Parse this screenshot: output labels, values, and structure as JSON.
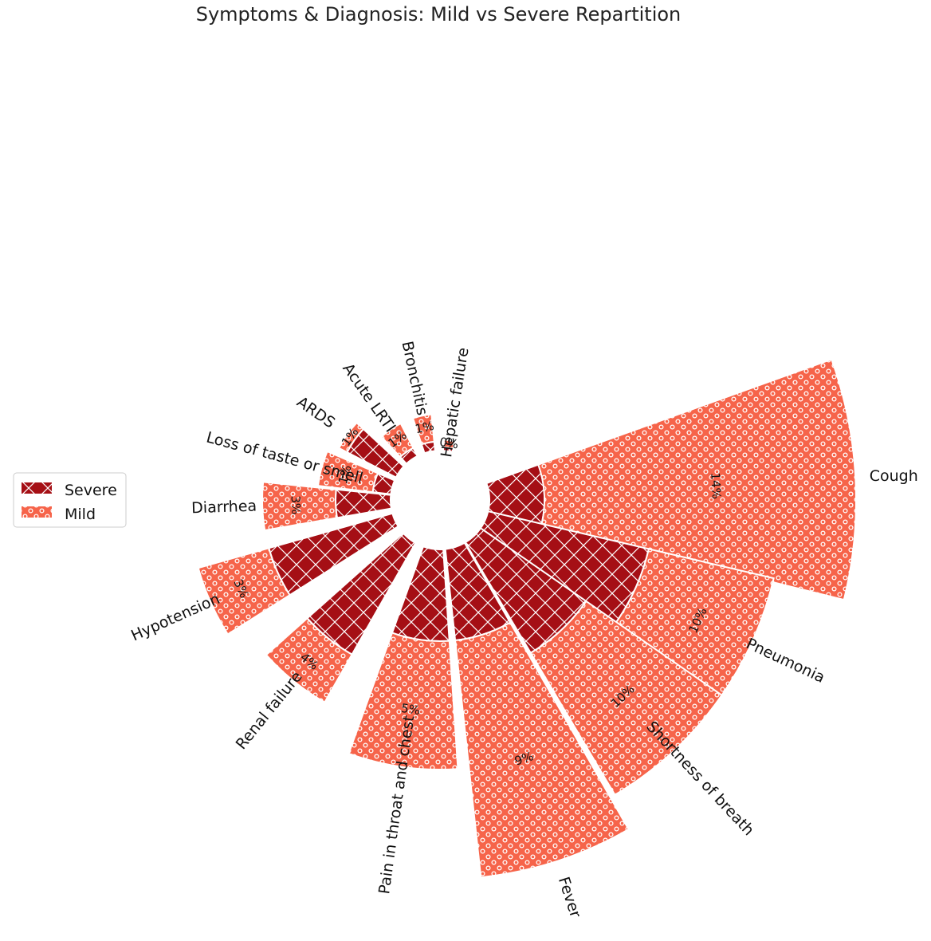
{
  "chart_data": {
    "type": "polar_bar_stacked",
    "title": "Symptoms & Diagnosis: Mild vs Severe Repartition",
    "legend": {
      "placement": "left",
      "entries": [
        {
          "name": "Severe",
          "color": "#a50f15",
          "hatch": "crosshatch"
        },
        {
          "name": "Mild",
          "color": "#f6644a",
          "hatch": "circles"
        }
      ]
    },
    "categories": [
      "Cough",
      "Pneumonia",
      "Shortness of breath",
      "Fever",
      "Pain in throat and chest",
      "Renal failure",
      "Hypotension",
      "Diarrhea",
      "Loss of taste or smell",
      "ARDS",
      "Acute LRTI",
      "Bronchitis",
      "Hepatic failure"
    ],
    "series": [
      {
        "name": "Severe",
        "values": [
          0.03,
          0.09,
          0.07,
          0.05,
          0.05,
          0.07,
          0.07,
          0.03,
          0.01,
          0.03,
          0.005,
          0.005,
          0.002
        ]
      },
      {
        "name": "Mild",
        "values": [
          0.17,
          0.07,
          0.09,
          0.13,
          0.07,
          0.03,
          0.04,
          0.04,
          0.03,
          0.005,
          0.015,
          0.015,
          0.004
        ]
      }
    ],
    "percent_labels": [
      "14%",
      "10%",
      "10%",
      "9%",
      "5%",
      "4%",
      "3%",
      "3%",
      "1%",
      "1%",
      "1%",
      "1%",
      "0%"
    ],
    "colors": {
      "severe": "#a50f15",
      "mild": "#f6644a",
      "edge": "#ffffff"
    }
  }
}
